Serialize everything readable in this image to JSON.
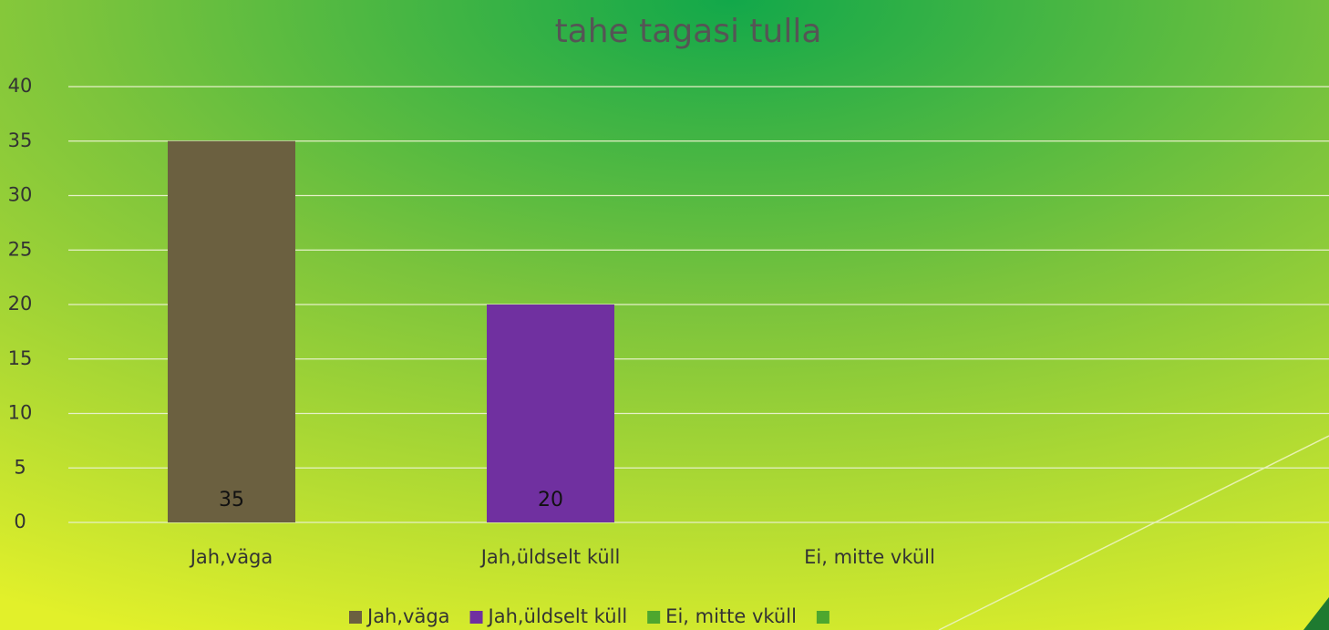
{
  "chart_data": {
    "type": "bar",
    "title": "tahe tagasi tulla",
    "categories": [
      "Jah,väga",
      "Jah,üldselt küll",
      "Ei, mitte vküll",
      null
    ],
    "values": [
      35,
      20,
      null,
      null
    ],
    "colors": [
      "#6b6040",
      "#7030a0",
      "#4ea72e",
      "#4ea72e"
    ],
    "ylim": [
      0,
      40
    ],
    "yticks": [
      0,
      5,
      10,
      15,
      20,
      25,
      30,
      35,
      40
    ],
    "grid": true,
    "legend": "bottom"
  }
}
